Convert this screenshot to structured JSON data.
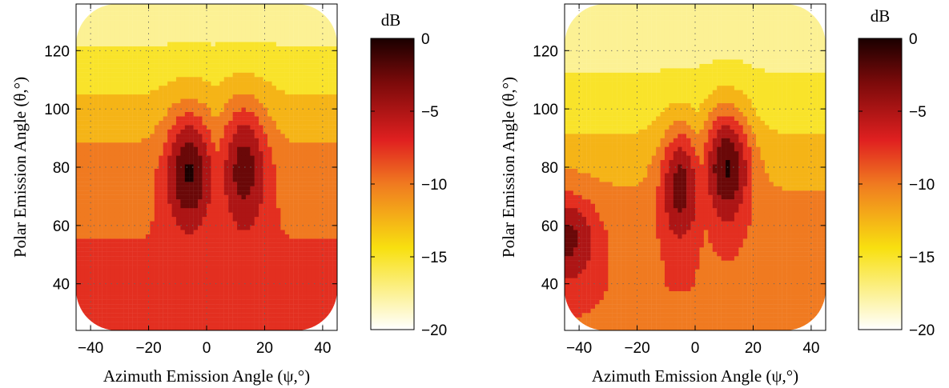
{
  "chart_data": [
    {
      "type": "heatmap",
      "xlabel": "Azimuth Emission Angle (ψ,°)",
      "ylabel": "Polar Emission Angle (θ,°)",
      "xlim": [
        -45,
        45
      ],
      "ylim": [
        24,
        136
      ],
      "x_ticks": [
        "−40",
        "−20",
        "0",
        "20",
        "40"
      ],
      "y_ticks": [
        "40",
        "60",
        "80",
        "100",
        "120"
      ],
      "grid": true,
      "colorbar": {
        "label": "dB",
        "ticks": [
          "0",
          "−5",
          "−10",
          "−15",
          "−20"
        ],
        "range": [
          -20,
          0
        ],
        "colormap": "hot"
      },
      "peaks": [
        {
          "x": -6,
          "y": 78,
          "level_db": -1,
          "sx": 8,
          "sy": 20
        },
        {
          "x": 13,
          "y": 79,
          "level_db": -2.5,
          "sx": 8,
          "sy": 22
        }
      ],
      "base_levels": [
        {
          "y": 40,
          "db": -8
        },
        {
          "y": 60,
          "db": -9
        },
        {
          "y": 80,
          "db": -10
        },
        {
          "y": 100,
          "db": -13
        },
        {
          "y": 120,
          "db": -16
        },
        {
          "y": 135,
          "db": -18
        }
      ]
    },
    {
      "type": "heatmap",
      "xlabel": "Azimuth Emission Angle (ψ,°)",
      "ylabel": "Polar Emission Angle (θ,°)",
      "xlim": [
        -45,
        45
      ],
      "ylim": [
        24,
        136
      ],
      "x_ticks": [
        "−40",
        "−20",
        "0",
        "20",
        "40"
      ],
      "y_ticks": [
        "40",
        "60",
        "80",
        "100",
        "120"
      ],
      "grid": true,
      "colorbar": {
        "label": "dB",
        "ticks": [
          "0",
          "−5",
          "−10",
          "−15",
          "−20"
        ],
        "range": [
          -20,
          0
        ],
        "colormap": "hot"
      },
      "peaks": [
        {
          "x": -5,
          "y": 73,
          "level_db": -2.5,
          "sx": 7,
          "sy": 20
        },
        {
          "x": 11,
          "y": 80,
          "level_db": -1,
          "sx": 8,
          "sy": 20
        },
        {
          "x": -44,
          "y": 55,
          "level_db": -3,
          "sx": 10,
          "sy": 15
        }
      ],
      "base_levels": [
        {
          "y": 40,
          "db": -9
        },
        {
          "y": 60,
          "db": -10
        },
        {
          "y": 80,
          "db": -12
        },
        {
          "y": 100,
          "db": -15
        },
        {
          "y": 120,
          "db": -17
        },
        {
          "y": 135,
          "db": -18
        }
      ]
    }
  ]
}
